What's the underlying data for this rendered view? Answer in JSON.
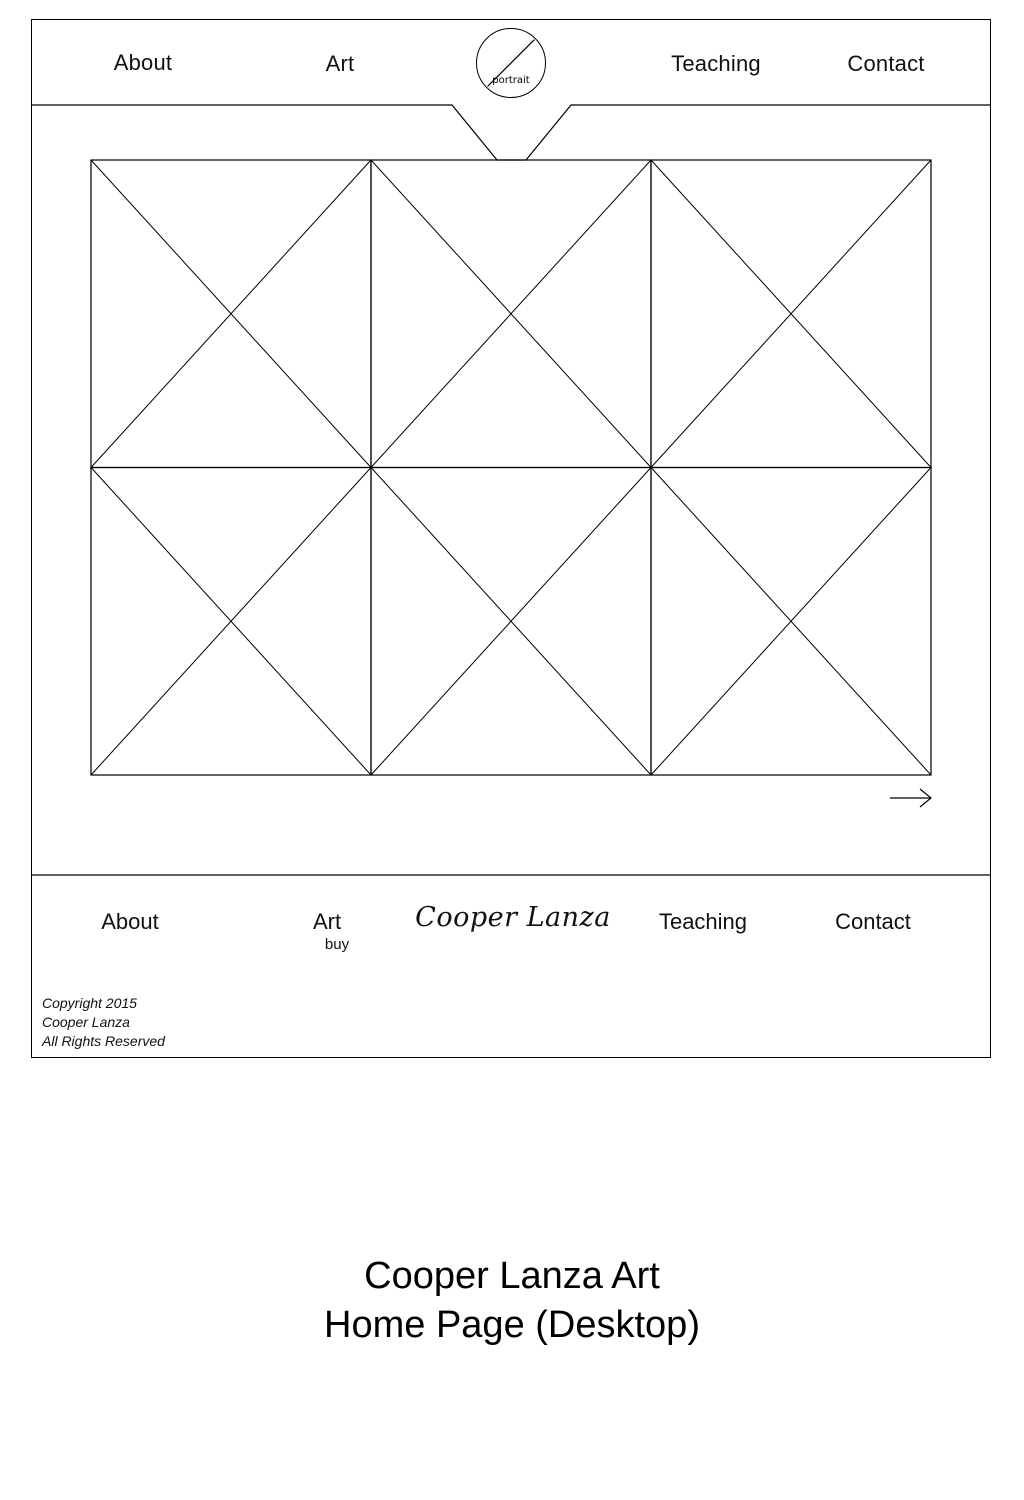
{
  "header": {
    "nav": [
      {
        "label": "About"
      },
      {
        "label": "Art"
      },
      {
        "label": "Teaching"
      },
      {
        "label": "Contact"
      }
    ],
    "portrait_label": "portrait"
  },
  "gallery": {
    "rows": 2,
    "columns": 3,
    "next_icon": "arrow-right-icon"
  },
  "footer": {
    "nav": [
      {
        "label": "About"
      },
      {
        "label": "Art",
        "sub": "buy"
      },
      {
        "label": "Teaching"
      },
      {
        "label": "Contact"
      }
    ],
    "logo_text": "Cooper Lanza",
    "copyright": [
      "Copyright 2015",
      "Cooper Lanza",
      "All Rights Reserved"
    ]
  },
  "caption": {
    "line1": "Cooper Lanza Art",
    "line2": "Home Page (Desktop)"
  }
}
